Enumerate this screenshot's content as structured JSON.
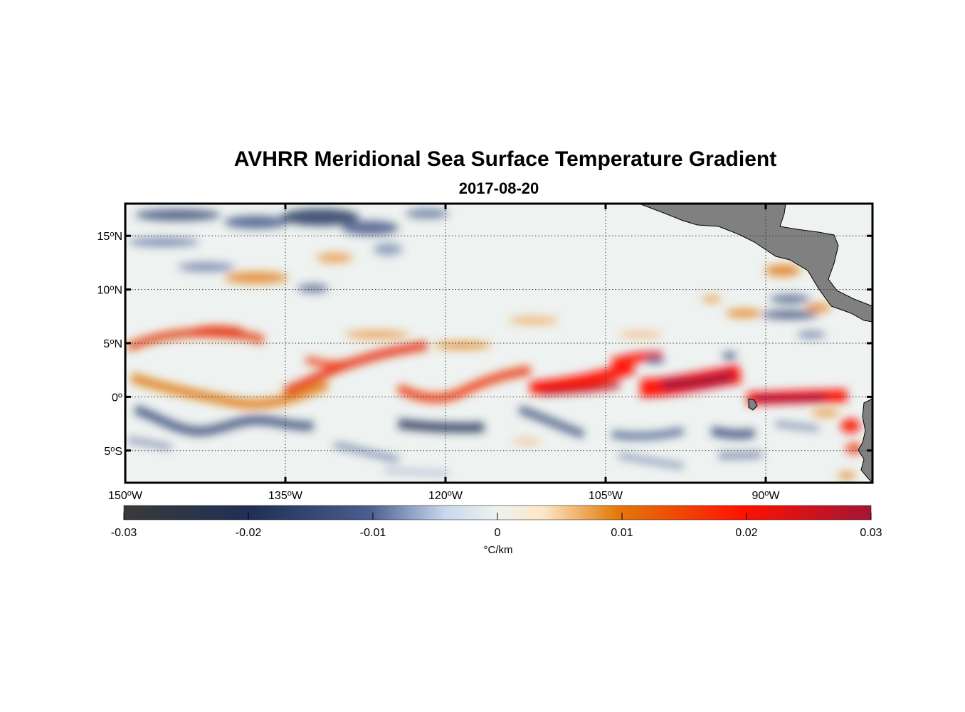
{
  "title": "AVHRR Meridional Sea Surface Temperature Gradient",
  "date": "2017-08-20",
  "map": {
    "lon_range": [
      -150,
      -80
    ],
    "lat_range": [
      -8,
      18
    ],
    "lon_ticks": [
      {
        "value": -150,
        "num": "150",
        "hemi": "W"
      },
      {
        "value": -135,
        "num": "135",
        "hemi": "W"
      },
      {
        "value": -120,
        "num": "120",
        "hemi": "W"
      },
      {
        "value": -105,
        "num": "105",
        "hemi": "W"
      },
      {
        "value": -90,
        "num": "90",
        "hemi": "W"
      }
    ],
    "lat_ticks": [
      {
        "value": 15,
        "num": "15",
        "hemi": "N"
      },
      {
        "value": 10,
        "num": "10",
        "hemi": "N"
      },
      {
        "value": 5,
        "num": "5",
        "hemi": "N"
      },
      {
        "value": 0,
        "num": "0",
        "hemi": ""
      },
      {
        "value": -5,
        "num": "5",
        "hemi": "S"
      }
    ],
    "grid": true,
    "land_color": "#808080"
  },
  "colorbar": {
    "min": -0.03,
    "max": 0.03,
    "ticks": [
      "-0.03",
      "-0.02",
      "-0.01",
      "0",
      "0.01",
      "0.02",
      "0.03"
    ],
    "unit": "°C/km",
    "colors": [
      "#3a3a3a",
      "#1f2f56",
      "#4c5e90",
      "#c8d8ee",
      "#eef2ef",
      "#fde7c8",
      "#e27a0a",
      "#ff1100",
      "#a31538"
    ]
  }
}
